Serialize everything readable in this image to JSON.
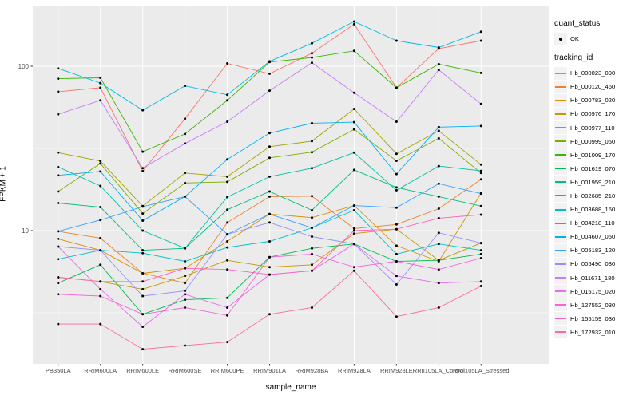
{
  "chart_data": {
    "type": "line",
    "xlabel": "sample_name",
    "ylabel": "FPKM + 1",
    "y_scale": "log10",
    "y_ticks": [
      {
        "value": 10,
        "label": "10"
      },
      {
        "value": 100,
        "label": "100"
      }
    ],
    "y_minor_ticks": [
      3.162,
      31.62
    ],
    "ylim": [
      1.55,
      234
    ],
    "grid": true,
    "legend_position": "right",
    "panel_bg": "#EBEBEB",
    "gridline_color": "#FFFFFF",
    "point_color": "#000000",
    "tick_label_color": "#4D4D4D",
    "categories": [
      "PB350LA",
      "RRIM600LA",
      "RRIM600LE",
      "RRIM600SE",
      "RRIM600PE",
      "RRIM901LA",
      "RRIM928BA",
      "RRIM928LA",
      "RRIM928LE",
      "RRII105LA_Control",
      "RRII105LA_Stressed"
    ],
    "series": [
      {
        "tracking_id": "Hb_000023_090",
        "color": "#F8766D",
        "values": [
          70,
          74,
          23,
          48,
          104,
          90,
          120,
          180,
          74,
          128,
          143
        ]
      },
      {
        "tracking_id": "Hb_000120_460",
        "color": "#EA8331",
        "values": [
          9.9,
          9.0,
          5.5,
          4.8,
          11.2,
          16.1,
          16.2,
          10.3,
          10.9,
          13.6,
          20.5
        ]
      },
      {
        "tracking_id": "Hb_000783_020",
        "color": "#D89000",
        "values": [
          8.9,
          7.6,
          5.5,
          5.9,
          8.6,
          12.6,
          12.0,
          14.2,
          8.1,
          6.5,
          16.9
        ]
      },
      {
        "tracking_id": "Hb_000976_170",
        "color": "#C09B00",
        "values": [
          5.2,
          4.9,
          4.4,
          5.3,
          6.6,
          6.0,
          6.2,
          9.6,
          10.2,
          6.6,
          8.4
        ]
      },
      {
        "tracking_id": "Hb_000977_110",
        "color": "#A3A500",
        "values": [
          29.8,
          26.5,
          14.1,
          22.4,
          21.3,
          32.4,
          35.0,
          55.0,
          29.3,
          40.5,
          25.2
        ]
      },
      {
        "tracking_id": "Hb_000999_050",
        "color": "#7CAE00",
        "values": [
          17.3,
          25.6,
          12.7,
          19.5,
          19.8,
          27.7,
          30.0,
          41.3,
          26.6,
          36.4,
          22.4
        ]
      },
      {
        "tracking_id": "Hb_001009_170",
        "color": "#39B600",
        "values": [
          84,
          85,
          30.2,
          38.7,
          62,
          106,
          113,
          124,
          74,
          103,
          91
        ]
      },
      {
        "tracking_id": "Hb_001619_070",
        "color": "#00BB4E",
        "values": [
          4.8,
          6.2,
          3.1,
          3.8,
          3.9,
          6.9,
          7.8,
          8.3,
          6.5,
          6.6,
          7.2
        ]
      },
      {
        "tracking_id": "Hb_001959_210",
        "color": "#00BF7D",
        "values": [
          14.7,
          13.9,
          7.6,
          7.8,
          13.4,
          17.3,
          13.3,
          23.4,
          18.3,
          16.1,
          14.1
        ]
      },
      {
        "tracking_id": "Hb_002685_210",
        "color": "#00C1A3",
        "values": [
          24.4,
          18.7,
          10.0,
          7.8,
          16.0,
          21.3,
          24.0,
          29.8,
          17.6,
          24.7,
          23.1
        ]
      },
      {
        "tracking_id": "Hb_003688_150",
        "color": "#00BFC4",
        "values": [
          6.7,
          7.6,
          7.3,
          6.5,
          7.9,
          8.6,
          10.4,
          13.3,
          7.2,
          8.3,
          7.6
        ]
      },
      {
        "tracking_id": "Hb_004218_110",
        "color": "#00BAE0",
        "values": [
          97,
          79,
          54,
          76,
          67,
          107,
          138,
          187,
          143,
          130,
          162
        ]
      },
      {
        "tracking_id": "Hb_004607_050",
        "color": "#00B0F6",
        "values": [
          21.7,
          22.9,
          11.5,
          16.1,
          27.1,
          39.2,
          45.0,
          45.7,
          22.1,
          42.6,
          43.3
        ]
      },
      {
        "tracking_id": "Hb_005183_120",
        "color": "#35A2FF",
        "values": [
          9.9,
          11.6,
          14.0,
          16.1,
          9.5,
          12.6,
          10.4,
          14.2,
          13.8,
          19.3,
          16.8
        ]
      },
      {
        "tracking_id": "Hb_005490_030",
        "color": "#9590FF",
        "values": [
          8.0,
          7.6,
          4.0,
          4.3,
          9.5,
          11.2,
          9.2,
          8.3,
          4.7,
          9.7,
          8.4
        ]
      },
      {
        "tracking_id": "Hb_011671_180",
        "color": "#C77CFF",
        "values": [
          51,
          62,
          24,
          33.9,
          46,
          71,
          105,
          69,
          46,
          95,
          59
        ]
      },
      {
        "tracking_id": "Hb_015175_020",
        "color": "#E76BF3",
        "values": [
          8.0,
          4.4,
          2.6,
          4.1,
          3.4,
          5.4,
          5.7,
          8.3,
          5.3,
          4.8,
          4.9
        ]
      },
      {
        "tracking_id": "Hb_127552_030",
        "color": "#FA62DB",
        "values": [
          4.1,
          4.0,
          3.1,
          3.4,
          3.05,
          6.9,
          7.2,
          6.0,
          6.5,
          5.8,
          6.8
        ]
      },
      {
        "tracking_id": "Hb_155159_030",
        "color": "#FF62BC",
        "values": [
          5.2,
          4.9,
          4.9,
          5.9,
          5.8,
          5.4,
          5.7,
          10.0,
          10.2,
          11.9,
          12.5
        ]
      },
      {
        "tracking_id": "Hb_172932_010",
        "color": "#FF6A98",
        "values": [
          2.7,
          2.7,
          1.9,
          2.0,
          2.1,
          3.1,
          3.4,
          5.7,
          3.0,
          3.4,
          4.6
        ]
      }
    ]
  },
  "legend": {
    "quant_status_title": "quant_status",
    "quant_status_items": [
      {
        "label": "OK",
        "marker": "point"
      }
    ],
    "tracking_id_title": "tracking_id"
  }
}
